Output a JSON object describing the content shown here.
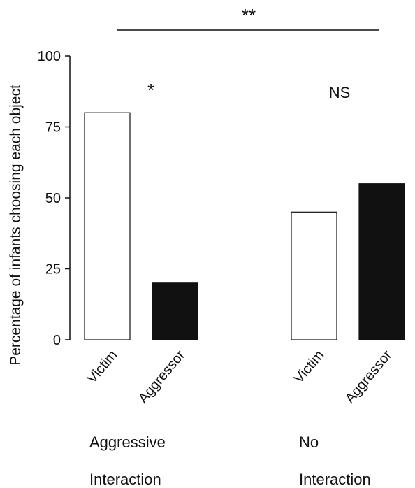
{
  "chart_data": {
    "type": "bar",
    "ylabel": "Percentage of infants choosing each object",
    "ylim": [
      0,
      100
    ],
    "yticks": [
      0,
      25,
      50,
      75,
      100
    ],
    "groups": [
      {
        "label_line1": "Aggressive",
        "label_line2": "Interaction",
        "significance": "*",
        "bars": [
          {
            "category": "Victim",
            "value": 80,
            "fill": "#ffffff"
          },
          {
            "category": "Aggressor",
            "value": 20,
            "fill": "#111111"
          }
        ]
      },
      {
        "label_line1": "No",
        "label_line2": "Interaction",
        "significance": "NS",
        "bars": [
          {
            "category": "Victim",
            "value": 45,
            "fill": "#ffffff"
          },
          {
            "category": "Aggressor",
            "value": 55,
            "fill": "#111111"
          }
        ]
      }
    ],
    "between_groups_significance": "**",
    "grid": false
  }
}
